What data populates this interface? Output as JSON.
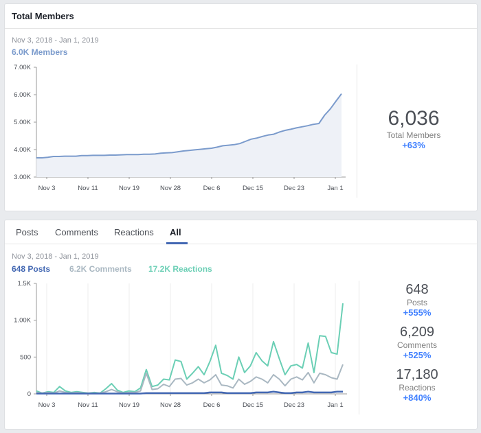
{
  "members_card": {
    "title": "Total Members",
    "date_range": "Nov 3, 2018 - Jan 1, 2019",
    "summary": "6.0K Members",
    "stat_value": "6,036",
    "stat_label": "Total Members",
    "stat_pct": "+63%"
  },
  "activity_card": {
    "tabs": [
      {
        "label": "Posts",
        "active": false
      },
      {
        "label": "Comments",
        "active": false
      },
      {
        "label": "Reactions",
        "active": false
      },
      {
        "label": "All",
        "active": true
      }
    ],
    "date_range": "Nov 3, 2018 - Jan 1, 2019",
    "legend": [
      {
        "text": "648 Posts",
        "color": "#4267b2"
      },
      {
        "text": "6.2K Comments",
        "color": "#aab8c2"
      },
      {
        "text": "17.2K Reactions",
        "color": "#6bcfb5"
      }
    ],
    "stats": [
      {
        "value": "648",
        "label": "Posts",
        "pct": "+555%"
      },
      {
        "value": "6,209",
        "label": "Comments",
        "pct": "+525%"
      },
      {
        "value": "17,180",
        "label": "Reactions",
        "pct": "+840%"
      }
    ]
  },
  "chart_data": [
    {
      "type": "area",
      "x_labels": [
        "Nov 3",
        "Nov 11",
        "Nov 19",
        "Nov 28",
        "Dec 6",
        "Dec 15",
        "Dec 23",
        "Jan 1"
      ],
      "y_tick_labels": [
        "7.00K",
        "6.00K",
        "5.00K",
        "4.00K",
        "3.00K"
      ],
      "y_ticks": [
        7000,
        6000,
        5000,
        4000,
        3000
      ],
      "ylim": [
        3000,
        7000
      ],
      "series": [
        {
          "color": "#7b9bcc",
          "values": [
            3700,
            3700,
            3720,
            3750,
            3750,
            3760,
            3760,
            3760,
            3780,
            3780,
            3790,
            3790,
            3790,
            3800,
            3800,
            3810,
            3820,
            3820,
            3820,
            3830,
            3830,
            3840,
            3870,
            3880,
            3890,
            3920,
            3950,
            3970,
            3990,
            4010,
            4030,
            4050,
            4090,
            4140,
            4160,
            4180,
            4220,
            4300,
            4380,
            4420,
            4480,
            4530,
            4560,
            4640,
            4700,
            4740,
            4790,
            4830,
            4870,
            4920,
            4950,
            5250,
            5480,
            5760,
            6036
          ]
        }
      ]
    },
    {
      "type": "line",
      "x_labels": [
        "Nov 3",
        "Nov 11",
        "Nov 19",
        "Nov 28",
        "Dec 6",
        "Dec 15",
        "Dec 23",
        "Jan 1"
      ],
      "y_tick_labels": [
        "1.5K",
        "1.00K",
        "500",
        "0"
      ],
      "y_ticks": [
        1500,
        1000,
        500,
        0
      ],
      "ylim": [
        0,
        1500
      ],
      "series": [
        {
          "color": "#6bcfb5",
          "values": [
            40,
            10,
            30,
            20,
            100,
            40,
            20,
            30,
            20,
            10,
            20,
            10,
            70,
            140,
            50,
            20,
            40,
            30,
            80,
            330,
            100,
            120,
            200,
            190,
            460,
            440,
            200,
            280,
            370,
            260,
            440,
            660,
            280,
            250,
            200,
            500,
            290,
            380,
            560,
            450,
            380,
            710,
            480,
            260,
            380,
            400,
            350,
            690,
            290,
            790,
            780,
            560,
            540,
            1230
          ]
        },
        {
          "color": "#aab8c2",
          "values": [
            20,
            10,
            20,
            10,
            40,
            20,
            10,
            20,
            10,
            10,
            10,
            10,
            30,
            60,
            30,
            10,
            20,
            20,
            40,
            280,
            60,
            70,
            130,
            100,
            200,
            210,
            120,
            150,
            200,
            150,
            190,
            260,
            120,
            110,
            80,
            200,
            130,
            170,
            230,
            200,
            150,
            260,
            200,
            110,
            200,
            230,
            190,
            290,
            150,
            280,
            260,
            220,
            200,
            400
          ]
        },
        {
          "color": "#4267b2",
          "values": [
            5,
            5,
            5,
            5,
            5,
            5,
            5,
            5,
            5,
            5,
            5,
            5,
            5,
            5,
            5,
            5,
            5,
            5,
            5,
            10,
            10,
            10,
            10,
            10,
            10,
            10,
            10,
            10,
            10,
            10,
            20,
            20,
            20,
            10,
            10,
            10,
            10,
            10,
            20,
            20,
            20,
            30,
            20,
            10,
            10,
            20,
            20,
            30,
            20,
            20,
            20,
            20,
            30,
            30
          ]
        }
      ]
    }
  ]
}
